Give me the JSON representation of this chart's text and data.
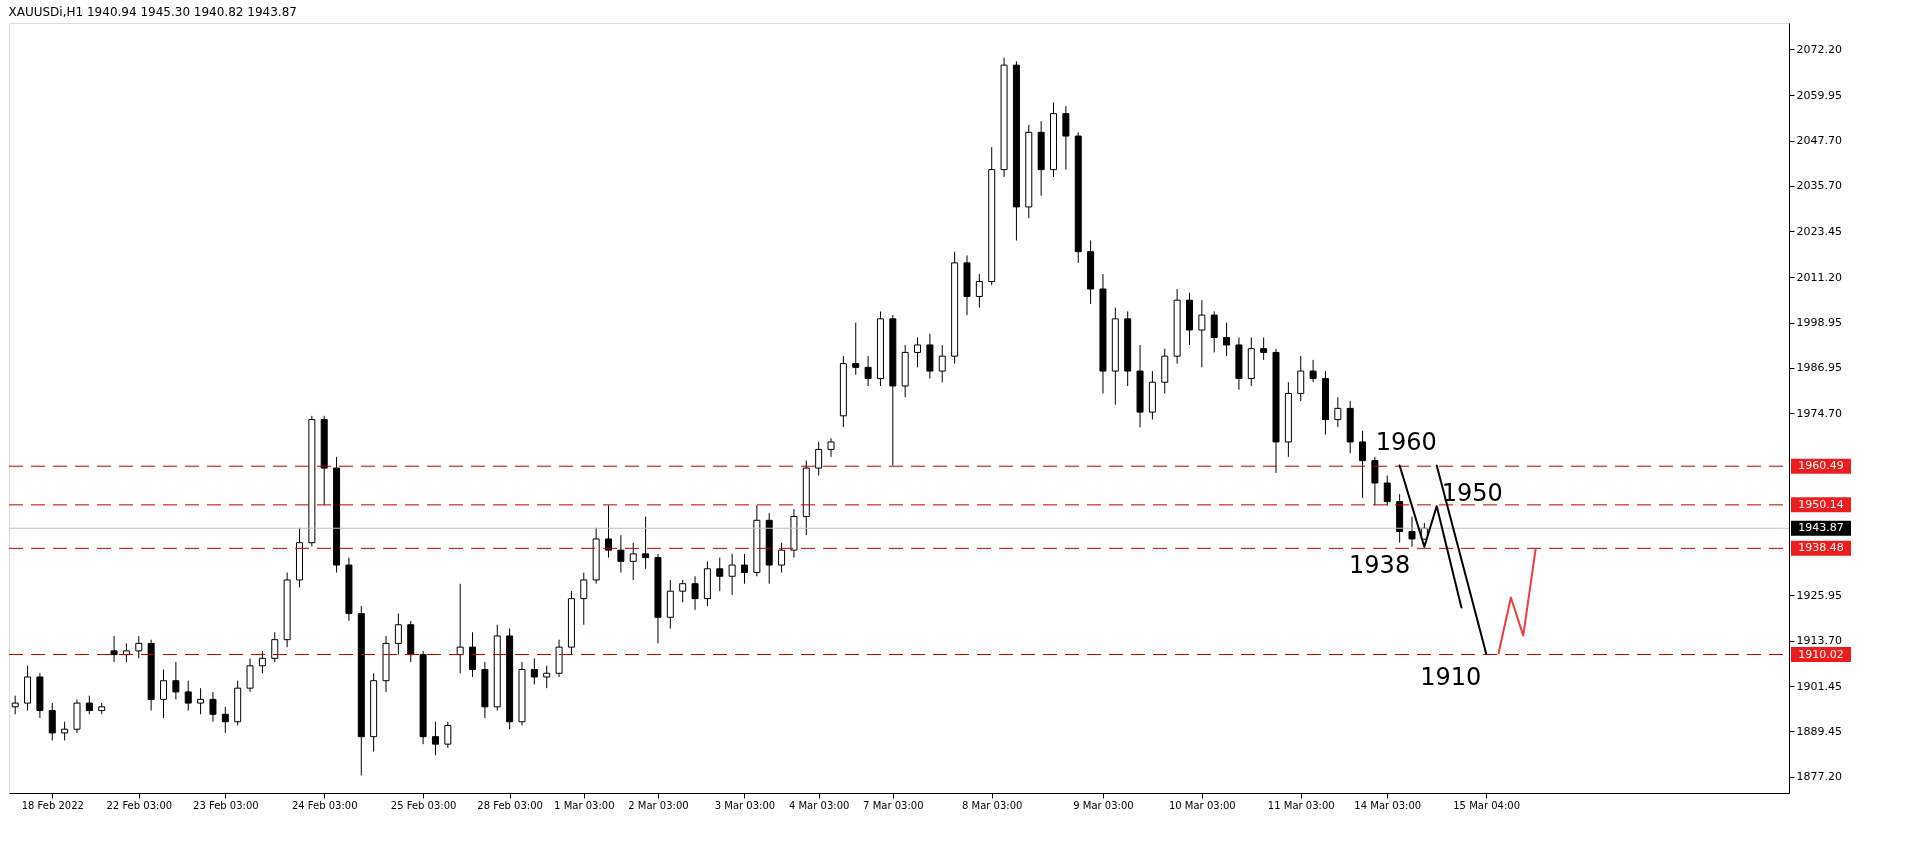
{
  "chart_data": {
    "type": "candlestick",
    "title": "XAUUSDi,H1  1940.94 1945.30 1940.82 1943.87",
    "categories": [
      null,
      null,
      null,
      "18 Feb 2022",
      null,
      null,
      null,
      null,
      null,
      null,
      "22 Feb 03:00",
      null,
      null,
      null,
      null,
      null,
      null,
      "23 Feb 03:00",
      null,
      null,
      null,
      null,
      null,
      null,
      null,
      "24 Feb 03:00",
      null,
      null,
      null,
      null,
      null,
      null,
      null,
      "25 Feb 03:00",
      null,
      null,
      null,
      null,
      null,
      null,
      "28 Feb 03:00",
      null,
      null,
      null,
      null,
      null,
      "1 Mar 03:00",
      null,
      null,
      null,
      null,
      null,
      "2 Mar 03:00",
      null,
      null,
      null,
      null,
      null,
      null,
      "3 Mar 03:00",
      null,
      null,
      null,
      null,
      null,
      "4 Mar 03:00",
      null,
      null,
      null,
      null,
      null,
      "7 Mar 03:00",
      null,
      null,
      null,
      null,
      null,
      null,
      null,
      "8 Mar 03:00",
      null,
      null,
      null,
      null,
      null,
      null,
      null,
      null,
      "9 Mar 03:00",
      null,
      null,
      null,
      null,
      null,
      null,
      null,
      "10 Mar 03:00",
      null,
      null,
      null,
      null,
      null,
      null,
      null,
      "11 Mar 03:00",
      null,
      null,
      null,
      null,
      null,
      null,
      "14 Mar 03:00",
      null,
      null,
      null,
      null,
      null,
      null,
      null,
      "15 Mar 04:00",
      null,
      null,
      null,
      null,
      null,
      null,
      null,
      null,
      null,
      null,
      null,
      null,
      null,
      null,
      null,
      null,
      null,
      null,
      null,
      null,
      null,
      null,
      null,
      null
    ],
    "ohlc": [
      [
        1896,
        1899,
        1894,
        1897
      ],
      [
        1897,
        1907,
        1895,
        1904
      ],
      [
        1904,
        1905,
        1893,
        1895
      ],
      [
        1895,
        1897,
        1887,
        1889
      ],
      [
        1889,
        1892,
        1887,
        1890
      ],
      [
        1890,
        1898,
        1889,
        1897
      ],
      [
        1897,
        1899,
        1894,
        1895
      ],
      [
        1895,
        1897,
        1894,
        1896
      ],
      [
        1911,
        1915,
        1908,
        1910
      ],
      [
        1910,
        1913,
        1908,
        1911
      ],
      [
        1911,
        1915,
        1909,
        1913
      ],
      [
        1913,
        1914,
        1895,
        1898
      ],
      [
        1898,
        1906,
        1893,
        1903
      ],
      [
        1903,
        1908,
        1898,
        1900
      ],
      [
        1900,
        1903,
        1895,
        1897
      ],
      [
        1897,
        1901,
        1894,
        1898
      ],
      [
        1898,
        1900,
        1892,
        1894
      ],
      [
        1894,
        1896,
        1889,
        1892
      ],
      [
        1892,
        1903,
        1891,
        1901
      ],
      [
        1901,
        1909,
        1900,
        1907
      ],
      [
        1907,
        1911,
        1905,
        1909
      ],
      [
        1909,
        1916,
        1908,
        1914
      ],
      [
        1914,
        1932,
        1912,
        1930
      ],
      [
        1930,
        1944,
        1928,
        1940
      ],
      [
        1940,
        1974,
        1939,
        1973
      ],
      [
        1973,
        1974,
        1950,
        1960
      ],
      [
        1960,
        1963,
        1932,
        1934
      ],
      [
        1934,
        1936,
        1919,
        1921
      ],
      [
        1921,
        1923,
        1877.6,
        1888
      ],
      [
        1888,
        1905,
        1884,
        1903
      ],
      [
        1903,
        1915,
        1900,
        1913
      ],
      [
        1913,
        1921,
        1910,
        1918
      ],
      [
        1918,
        1919,
        1908,
        1910
      ],
      [
        1910,
        1911,
        1886,
        1888
      ],
      [
        1888,
        1892,
        1883,
        1886
      ],
      [
        1886,
        1892,
        1885,
        1891
      ],
      [
        1910,
        1929,
        1905,
        1912
      ],
      [
        1912,
        1916,
        1904,
        1906
      ],
      [
        1906,
        1908,
        1893,
        1896
      ],
      [
        1896,
        1918,
        1895,
        1915
      ],
      [
        1915,
        1917,
        1890,
        1892
      ],
      [
        1892,
        1908,
        1891,
        1906
      ],
      [
        1906,
        1909,
        1902,
        1904
      ],
      [
        1904,
        1907,
        1901,
        1905
      ],
      [
        1905,
        1914,
        1904,
        1912
      ],
      [
        1912,
        1927,
        1910,
        1925
      ],
      [
        1925,
        1932,
        1918,
        1930
      ],
      [
        1930,
        1944,
        1929,
        1941
      ],
      [
        1941,
        1950,
        1936,
        1938
      ],
      [
        1938,
        1942,
        1932,
        1935
      ],
      [
        1935,
        1940,
        1930,
        1937
      ],
      [
        1937,
        1947,
        1933,
        1936
      ],
      [
        1936,
        1937,
        1913,
        1920
      ],
      [
        1920,
        1930,
        1917,
        1927
      ],
      [
        1927,
        1930,
        1924,
        1929
      ],
      [
        1929,
        1931,
        1922,
        1925
      ],
      [
        1925,
        1935,
        1923,
        1933
      ],
      [
        1933,
        1936,
        1927,
        1931
      ],
      [
        1931,
        1937,
        1926,
        1934
      ],
      [
        1934,
        1937,
        1929,
        1932
      ],
      [
        1932,
        1950,
        1931,
        1946
      ],
      [
        1946,
        1948,
        1929,
        1934
      ],
      [
        1934,
        1940,
        1932,
        1938
      ],
      [
        1938,
        1949,
        1936,
        1947
      ],
      [
        1947,
        1962,
        1942,
        1960
      ],
      [
        1960,
        1967,
        1958,
        1965
      ],
      [
        1965,
        1968,
        1963,
        1967
      ],
      [
        1974,
        1990,
        1971,
        1988
      ],
      [
        1988,
        1999,
        1985,
        1987
      ],
      [
        1987,
        1990,
        1982,
        1984
      ],
      [
        1984,
        2002,
        1982,
        2000
      ],
      [
        2000,
        2001,
        1960.7,
        1982
      ],
      [
        1982,
        1993,
        1979,
        1991
      ],
      [
        1991,
        1995,
        1987,
        1993
      ],
      [
        1993,
        1996,
        1984,
        1986
      ],
      [
        1986,
        1993,
        1983,
        1990
      ],
      [
        1990,
        2018,
        1988,
        2015
      ],
      [
        2015,
        2017,
        2001,
        2006
      ],
      [
        2006,
        2012,
        2003,
        2010
      ],
      [
        2010,
        2046,
        2009,
        2040
      ],
      [
        2040,
        2070,
        2038,
        2068
      ],
      [
        2068,
        2069,
        2021,
        2030
      ],
      [
        2030,
        2052,
        2027,
        2050
      ],
      [
        2050,
        2053,
        2033,
        2040
      ],
      [
        2040,
        2058,
        2038,
        2055
      ],
      [
        2055,
        2057,
        2040,
        2049
      ],
      [
        2049,
        2050,
        2015,
        2018
      ],
      [
        2018,
        2021,
        2004,
        2008
      ],
      [
        2008,
        2012,
        1980,
        1986
      ],
      [
        1986,
        2003,
        1977,
        2000
      ],
      [
        2000,
        2002,
        1982,
        1986
      ],
      [
        1986,
        1993,
        1970.9,
        1975
      ],
      [
        1975,
        1986,
        1973,
        1983
      ],
      [
        1983,
        1992,
        1980,
        1990
      ],
      [
        1990,
        2008,
        1988,
        2005
      ],
      [
        2005,
        2007,
        1993,
        1997
      ],
      [
        1997,
        2005,
        1987,
        2001
      ],
      [
        2001,
        2002,
        1991,
        1995
      ],
      [
        1995,
        1999,
        1990,
        1993
      ],
      [
        1993,
        1995,
        1981,
        1984
      ],
      [
        1984,
        1995,
        1982,
        1992
      ],
      [
        1992,
        1995,
        1989,
        1991
      ],
      [
        1991,
        1992,
        1958.7,
        1967
      ],
      [
        1967,
        1983,
        1963,
        1980
      ],
      [
        1980,
        1990,
        1978,
        1986
      ],
      [
        1986,
        1989,
        1983,
        1984
      ],
      [
        1984,
        1986,
        1969,
        1973
      ],
      [
        1973,
        1979,
        1971,
        1976
      ],
      [
        1976,
        1978,
        1964,
        1967
      ],
      [
        1967,
        1970,
        1952,
        1962
      ],
      [
        1962,
        1963,
        1950,
        1956
      ],
      [
        1956,
        1958,
        1950,
        1951
      ],
      [
        1951,
        1953,
        1940,
        1943
      ],
      [
        1943,
        1947,
        1938.9,
        1941
      ],
      [
        1940.94,
        1945.3,
        1940.82,
        1943.87
      ],
      null,
      null,
      null,
      null,
      null,
      null,
      null,
      null,
      null,
      null,
      null,
      null,
      null,
      null,
      null,
      null,
      null,
      null,
      null,
      null,
      null,
      null,
      null,
      null,
      null,
      null,
      null,
      null,
      null
    ],
    "series": [
      {
        "type": "line",
        "color": "#000000",
        "values": [
          null,
          null,
          null,
          null,
          null,
          null,
          null,
          null,
          null,
          null,
          null,
          null,
          null,
          null,
          null,
          null,
          null,
          null,
          null,
          null,
          null,
          null,
          null,
          null,
          null,
          null,
          null,
          null,
          null,
          null,
          null,
          null,
          null,
          null,
          null,
          null,
          null,
          null,
          null,
          null,
          null,
          null,
          null,
          null,
          null,
          null,
          null,
          null,
          null,
          null,
          null,
          null,
          null,
          null,
          null,
          null,
          null,
          null,
          null,
          null,
          null,
          null,
          null,
          null,
          null,
          null,
          null,
          null,
          null,
          null,
          null,
          null,
          null,
          null,
          null,
          null,
          null,
          null,
          null,
          null,
          null,
          null,
          null,
          null,
          null,
          null,
          null,
          null,
          null,
          null,
          null,
          null,
          null,
          null,
          null,
          null,
          null,
          null,
          null,
          null,
          null,
          null,
          null,
          null,
          null,
          null,
          null,
          null,
          null,
          null,
          null,
          null,
          1960.7,
          null,
          1938.9,
          1949.8,
          null,
          1922.6,
          null,
          null,
          null,
          null,
          null,
          null,
          null,
          null,
          null,
          null,
          null,
          null,
          null,
          null,
          null,
          null,
          null,
          null,
          null,
          null,
          null,
          null,
          null,
          null,
          null,
          null
        ]
      },
      {
        "type": "line",
        "color": "#000000",
        "values": [
          null,
          null,
          null,
          null,
          null,
          null,
          null,
          null,
          null,
          null,
          null,
          null,
          null,
          null,
          null,
          null,
          null,
          null,
          null,
          null,
          null,
          null,
          null,
          null,
          null,
          null,
          null,
          null,
          null,
          null,
          null,
          null,
          null,
          null,
          null,
          null,
          null,
          null,
          null,
          null,
          null,
          null,
          null,
          null,
          null,
          null,
          null,
          null,
          null,
          null,
          null,
          null,
          null,
          null,
          null,
          null,
          null,
          null,
          null,
          null,
          null,
          null,
          null,
          null,
          null,
          null,
          null,
          null,
          null,
          null,
          null,
          null,
          null,
          null,
          null,
          null,
          null,
          null,
          null,
          null,
          null,
          null,
          null,
          null,
          null,
          null,
          null,
          null,
          null,
          null,
          null,
          null,
          null,
          null,
          null,
          null,
          null,
          null,
          null,
          null,
          null,
          null,
          null,
          null,
          null,
          null,
          null,
          null,
          null,
          null,
          null,
          null,
          null,
          null,
          null,
          1960.7,
          null,
          null,
          null,
          1910.3,
          null,
          null,
          null,
          null,
          null,
          null,
          null,
          null,
          null,
          null,
          null,
          null,
          null,
          null,
          null,
          null,
          null,
          null,
          null,
          null,
          null,
          null,
          null,
          null
        ]
      },
      {
        "type": "line",
        "color": "#f03c3c",
        "values": [
          null,
          null,
          null,
          null,
          null,
          null,
          null,
          null,
          null,
          null,
          null,
          null,
          null,
          null,
          null,
          null,
          null,
          null,
          null,
          null,
          null,
          null,
          null,
          null,
          null,
          null,
          null,
          null,
          null,
          null,
          null,
          null,
          null,
          null,
          null,
          null,
          null,
          null,
          null,
          null,
          null,
          null,
          null,
          null,
          null,
          null,
          null,
          null,
          null,
          null,
          null,
          null,
          null,
          null,
          null,
          null,
          null,
          null,
          null,
          null,
          null,
          null,
          null,
          null,
          null,
          null,
          null,
          null,
          null,
          null,
          null,
          null,
          null,
          null,
          null,
          null,
          null,
          null,
          null,
          null,
          null,
          null,
          null,
          null,
          null,
          null,
          null,
          null,
          null,
          null,
          null,
          null,
          null,
          null,
          null,
          null,
          null,
          null,
          null,
          null,
          null,
          null,
          null,
          null,
          null,
          null,
          null,
          null,
          null,
          null,
          null,
          null,
          null,
          null,
          null,
          null,
          null,
          null,
          null,
          null,
          1910.3,
          1925.3,
          1915.1,
          1938.2,
          null,
          null,
          null,
          null,
          null,
          null,
          null,
          null,
          null,
          null,
          null,
          null,
          null,
          null,
          null,
          null,
          null,
          null,
          null,
          null
        ]
      }
    ],
    "ylim": [
      1872.9,
      2079.3
    ],
    "yticks": [
      {
        "value": 1877.2,
        "label": "1877.20"
      },
      {
        "value": 1889.45,
        "label": "1889.45"
      },
      {
        "value": 1901.45,
        "label": "1901.45"
      },
      {
        "value": 1913.7,
        "label": "1913.70"
      },
      {
        "value": 1925.95,
        "label": "1925.95"
      },
      {
        "value": 1974.7,
        "label": "1974.70"
      },
      {
        "value": 1986.95,
        "label": "1986.95"
      },
      {
        "value": 1998.95,
        "label": "1998.95"
      },
      {
        "value": 2011.2,
        "label": "2011.20"
      },
      {
        "value": 2023.45,
        "label": "2023.45"
      },
      {
        "value": 2035.7,
        "label": "2035.70"
      },
      {
        "value": 2047.7,
        "label": "2047.70"
      },
      {
        "value": 2059.95,
        "label": "2059.95"
      },
      {
        "value": 2072.2,
        "label": "2072.20"
      }
    ],
    "ref_lines": [
      {
        "axis": "y",
        "value": 1960.49,
        "label": "1960.49",
        "color": "#c00000",
        "line_style": "dashed"
      },
      {
        "axis": "y",
        "value": 1950.14,
        "label": "1950.14",
        "color": "#c00000",
        "line_style": "dashed"
      },
      {
        "axis": "y",
        "value": 1943.87,
        "label": "1943.87",
        "color": "#c0c0c0",
        "line_style": "solid"
      },
      {
        "axis": "y",
        "value": 1938.48,
        "label": "1938.48",
        "color": "#c00000",
        "line_style": "dashed"
      },
      {
        "axis": "y",
        "value": 1910.02,
        "label": "1910.02",
        "color": "#c00000",
        "line_style": "dashed"
      }
    ],
    "annotations": [
      "1960",
      "1950",
      "1938",
      "1910"
    ],
    "grid": false,
    "marker": "none"
  }
}
